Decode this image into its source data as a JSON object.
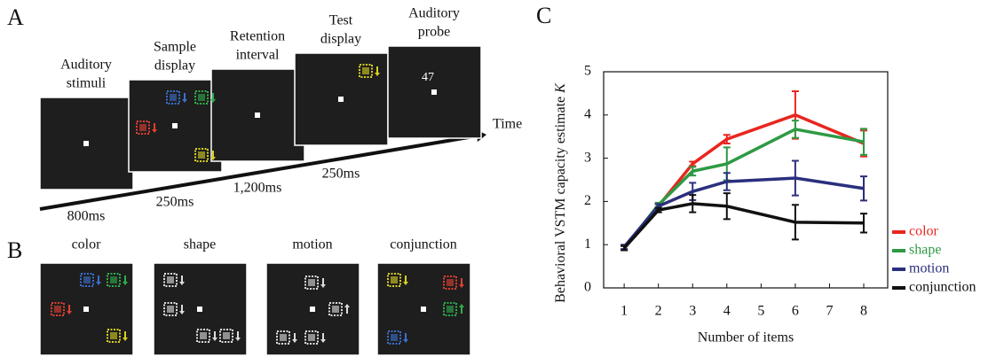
{
  "panel_labels": {
    "a": "A",
    "b": "B",
    "c": "C"
  },
  "panel_a": {
    "screens": [
      {
        "label_lines": [
          "Auditory",
          "stimuli"
        ],
        "duration": "800ms"
      },
      {
        "label_lines": [
          "Sample",
          "display"
        ],
        "duration": "250ms"
      },
      {
        "label_lines": [
          "Retention",
          "interval"
        ],
        "duration": "1,200ms"
      },
      {
        "label_lines": [
          "Test",
          "display"
        ],
        "duration": "250ms"
      },
      {
        "label_lines": [
          "Auditory",
          "probe"
        ],
        "probe_number": "47"
      }
    ],
    "time_label": "Time"
  },
  "panel_b": {
    "conditions": [
      "color",
      "shape",
      "motion",
      "conjunction"
    ]
  },
  "chart_data": {
    "type": "line",
    "x_label": "Number of items",
    "y_label": "Behavioral VSTM capacity estimate",
    "y_label_var": "K",
    "x": [
      1,
      2,
      3,
      4,
      6,
      8
    ],
    "xlim": [
      0.4,
      8.7
    ],
    "xticks": [
      1,
      2,
      3,
      4,
      5,
      6,
      7,
      8
    ],
    "ylim": [
      0,
      5
    ],
    "yticks": [
      0,
      1,
      2,
      3,
      4,
      5
    ],
    "legend": "outside right",
    "series": [
      {
        "name": "color",
        "color": "#e8261f",
        "values": [
          0.92,
          1.89,
          2.87,
          3.44,
          4.0,
          3.34
        ],
        "errors": [
          0.05,
          0.05,
          0.05,
          0.1,
          0.55,
          0.3
        ]
      },
      {
        "name": "shape",
        "color": "#2e9a44",
        "values": [
          0.92,
          1.92,
          2.7,
          2.87,
          3.67,
          3.38
        ],
        "errors": [
          0.05,
          0.05,
          0.1,
          0.38,
          0.2,
          0.3
        ]
      },
      {
        "name": "motion",
        "color": "#2a2f7e",
        "values": [
          0.95,
          1.89,
          2.23,
          2.46,
          2.54,
          2.3
        ],
        "errors": [
          0.05,
          0.05,
          0.2,
          0.2,
          0.4,
          0.28
        ]
      },
      {
        "name": "conjunction",
        "color": "#111111",
        "values": [
          0.92,
          1.8,
          1.95,
          1.89,
          1.52,
          1.5
        ],
        "errors": [
          0.05,
          0.05,
          0.2,
          0.3,
          0.4,
          0.22
        ]
      }
    ]
  }
}
